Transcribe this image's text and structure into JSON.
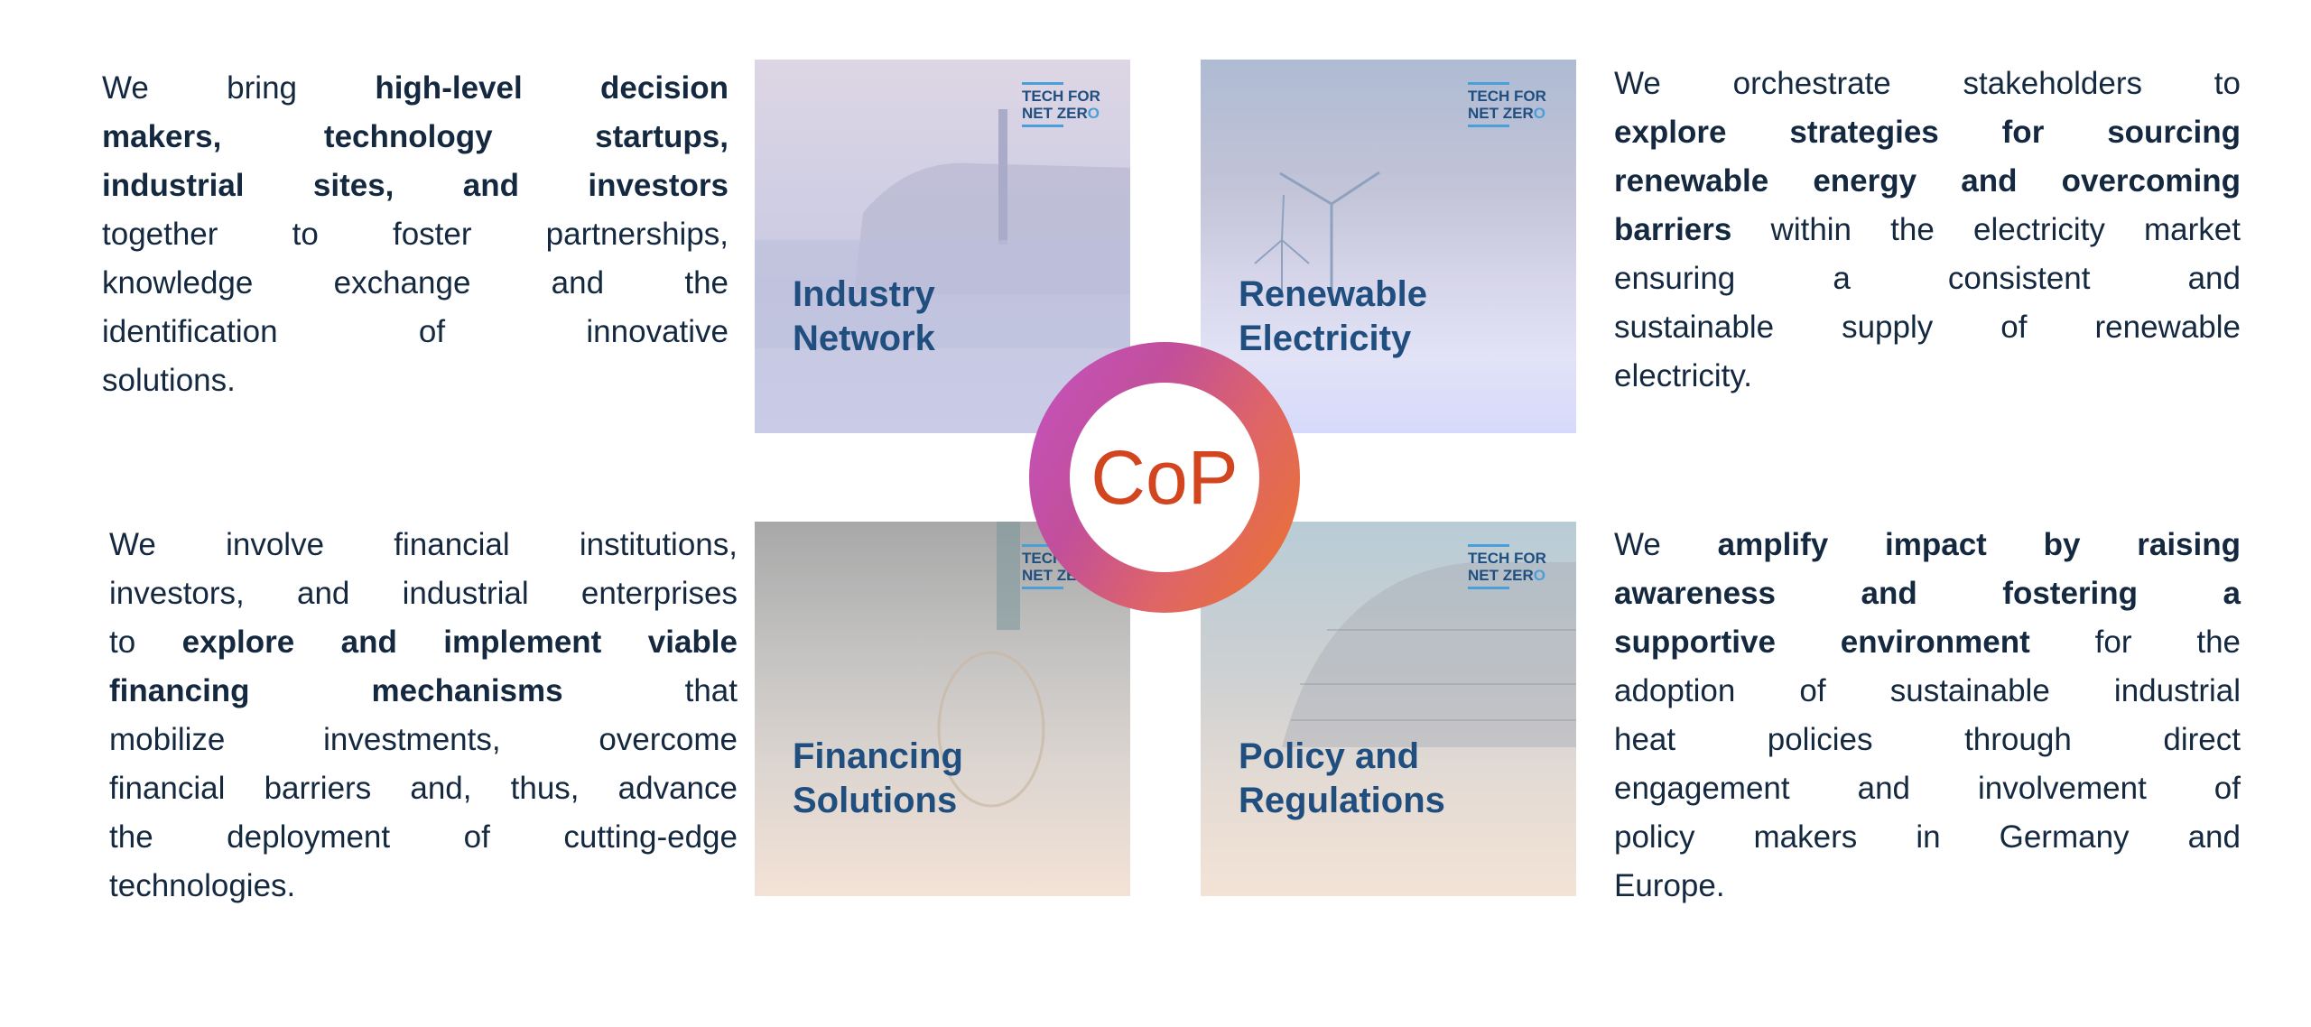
{
  "paragraphs": {
    "industry": [
      [
        {
          "t": "We bring ",
          "b": false
        },
        {
          "t": "high-level decision",
          "b": true
        }
      ],
      [
        {
          "t": "makers, technology startups,",
          "b": true
        }
      ],
      [
        {
          "t": "industrial sites, and investors",
          "b": true
        }
      ],
      [
        {
          "t": "together to foster partnerships,",
          "b": false
        }
      ],
      [
        {
          "t": "knowledge exchange and the",
          "b": false
        }
      ],
      [
        {
          "t": "identification of innovative",
          "b": false
        }
      ],
      [
        {
          "t": "solutions.",
          "b": false
        }
      ]
    ],
    "renewable": [
      [
        {
          "t": "We orchestrate stakeholders to",
          "b": false
        }
      ],
      [
        {
          "t": "explore strategies for sourcing",
          "b": true
        }
      ],
      [
        {
          "t": "renewable energy and overcoming",
          "b": true
        }
      ],
      [
        {
          "t": "barriers",
          "b": true
        },
        {
          "t": " within the electricity market",
          "b": false
        }
      ],
      [
        {
          "t": "ensuring a consistent and",
          "b": false
        }
      ],
      [
        {
          "t": "sustainable supply of renewable",
          "b": false
        }
      ],
      [
        {
          "t": "electricity.",
          "b": false
        }
      ]
    ],
    "financing": [
      [
        {
          "t": "We involve financial institutions,",
          "b": false
        }
      ],
      [
        {
          "t": "investors, and industrial enterprises",
          "b": false
        }
      ],
      [
        {
          "t": "to ",
          "b": false
        },
        {
          "t": "explore and implement viable",
          "b": true
        }
      ],
      [
        {
          "t": "financing mechanisms",
          "b": true
        },
        {
          "t": " that",
          "b": false
        }
      ],
      [
        {
          "t": "mobilize investments, overcome",
          "b": false
        }
      ],
      [
        {
          "t": "financial barriers and, thus, advance",
          "b": false
        }
      ],
      [
        {
          "t": "the deployment of cutting-edge",
          "b": false
        }
      ],
      [
        {
          "t": "technologies.",
          "b": false
        }
      ]
    ],
    "policy": [
      [
        {
          "t": "We ",
          "b": false
        },
        {
          "t": "amplify impact by raising",
          "b": true
        }
      ],
      [
        {
          "t": "awareness and fostering a",
          "b": true
        }
      ],
      [
        {
          "t": "supportive environment",
          "b": true
        },
        {
          "t": " for the",
          "b": false
        }
      ],
      [
        {
          "t": "adoption of sustainable industrial",
          "b": false
        }
      ],
      [
        {
          "t": "heat policies through direct",
          "b": false
        }
      ],
      [
        {
          "t": "engagement and involvement of",
          "b": false
        }
      ],
      [
        {
          "t": "policy makers in Germany and",
          "b": false
        }
      ],
      [
        {
          "t": "Europe.",
          "b": false
        }
      ]
    ]
  },
  "tiles": {
    "industry": {
      "line1": "Industry",
      "line2": "Network"
    },
    "renewable": {
      "line1": "Renewable",
      "line2": "Electricity"
    },
    "financing": {
      "line1": "Financing",
      "line2": "Solutions"
    },
    "policy": {
      "line1": "Policy and",
      "line2": "Regulations"
    }
  },
  "logo": {
    "line1": "TECH FOR",
    "line2a": "NET ZER",
    "line2b": "O"
  },
  "center": {
    "label": "CoP"
  },
  "colors": {
    "text": "#14283f",
    "tile_label": "#1f4e7f",
    "logo_accent": "#4a9fd8",
    "cop_text": "#d2451e",
    "ring_start": "#c553c2",
    "ring_end": "#ec7429"
  }
}
